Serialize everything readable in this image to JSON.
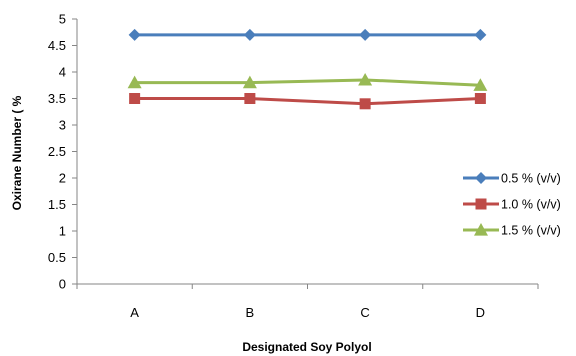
{
  "chart_data": {
    "type": "line",
    "title": "",
    "xlabel": "Designated Soy Polyol",
    "ylabel": "Oxirane Number ( %",
    "categories": [
      "A",
      "B",
      "C",
      "D"
    ],
    "ylim": [
      0,
      5
    ],
    "yticks": [
      "0",
      "0.5",
      "1",
      "1.5",
      "2",
      "2.5",
      "3",
      "3.5",
      "4",
      "4.5",
      "5"
    ],
    "grid": false,
    "legend_position": "right",
    "series": [
      {
        "name": "0.5 % (v/v)",
        "values": [
          4.7,
          4.7,
          4.7,
          4.7
        ],
        "color": "#4a7ebb",
        "marker": "diamond"
      },
      {
        "name": "1.0 % (v/v)",
        "values": [
          3.5,
          3.5,
          3.4,
          3.5
        ],
        "color": "#be4b48",
        "marker": "square"
      },
      {
        "name": "1.5 % (v/v)",
        "values": [
          3.8,
          3.8,
          3.85,
          3.75
        ],
        "color": "#98b954",
        "marker": "triangle"
      }
    ]
  }
}
